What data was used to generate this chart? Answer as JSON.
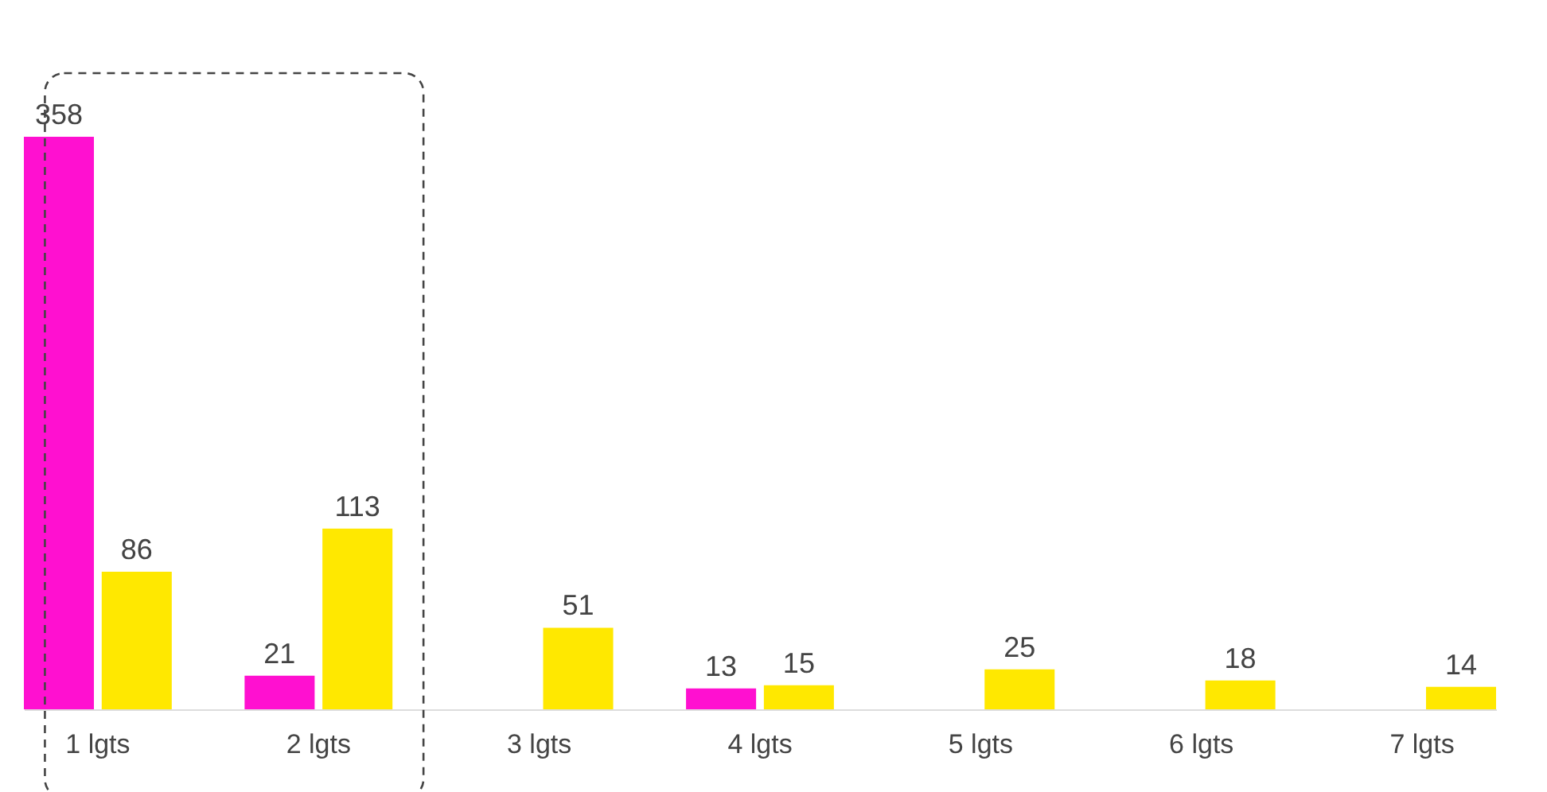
{
  "chart_data": {
    "type": "bar",
    "categories": [
      "1 lgts",
      "2 lgts",
      "3 lgts",
      "4 lgts",
      "5 lgts",
      "6 lgts",
      "7 lgts"
    ],
    "series": [
      {
        "color": "#ff10d0",
        "values": [
          358,
          21,
          null,
          13,
          null,
          null,
          null
        ]
      },
      {
        "color": "#ffe800",
        "values": [
          86,
          113,
          51,
          15,
          25,
          18,
          14
        ]
      }
    ],
    "data_labels": true,
    "grid": false,
    "legend": false
  }
}
